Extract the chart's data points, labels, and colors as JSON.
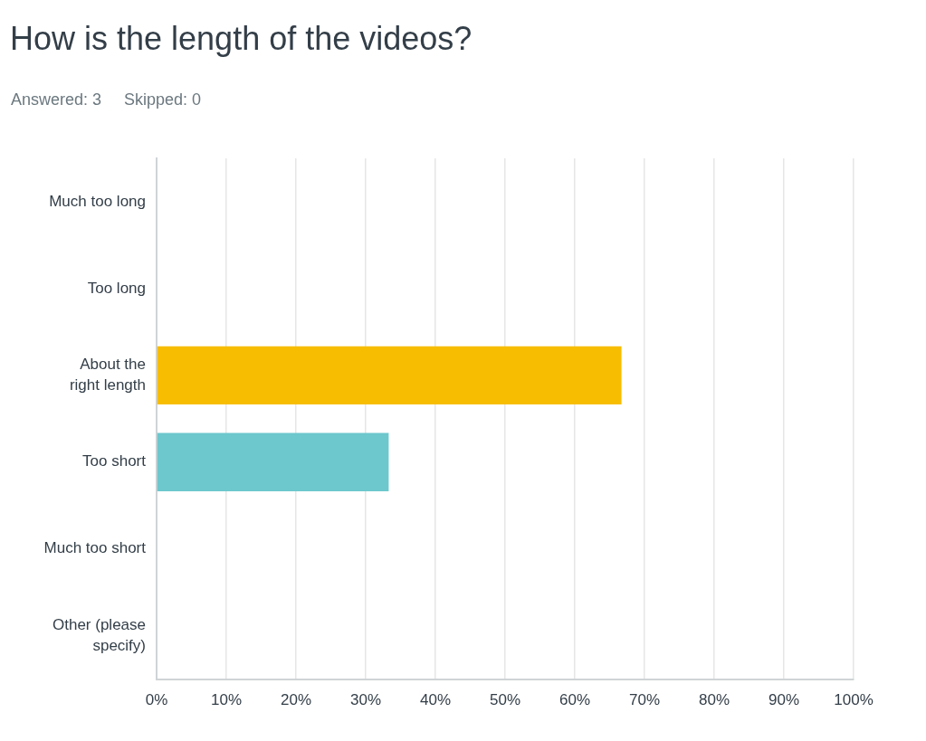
{
  "chart_data": {
    "type": "bar",
    "orientation": "horizontal",
    "title": "How is the length of the videos?",
    "subtitle": "Answered: 3     Skipped: 0",
    "categories": [
      "Much too long",
      "Too long",
      "About the\nright length",
      "Too short",
      "Much too short",
      "Other (please\nspecify)"
    ],
    "values": [
      0,
      0,
      66.7,
      33.3,
      0,
      0
    ],
    "colors": [
      "#f7bd00",
      "#f7bd00",
      "#f7bd00",
      "#6cc8cd",
      "#6cc8cd",
      "#6cc8cd"
    ],
    "xlim": [
      0,
      100
    ],
    "xticks": [
      {
        "value": 0,
        "label": "0%"
      },
      {
        "value": 10,
        "label": "10%"
      },
      {
        "value": 20,
        "label": "20%"
      },
      {
        "value": 30,
        "label": "30%"
      },
      {
        "value": 40,
        "label": "40%"
      },
      {
        "value": 50,
        "label": "50%"
      },
      {
        "value": 60,
        "label": "60%"
      },
      {
        "value": 70,
        "label": "70%"
      },
      {
        "value": 80,
        "label": "80%"
      },
      {
        "value": 90,
        "label": "90%"
      },
      {
        "value": 100,
        "label": "100%"
      }
    ],
    "grid": "x",
    "legend": false
  }
}
